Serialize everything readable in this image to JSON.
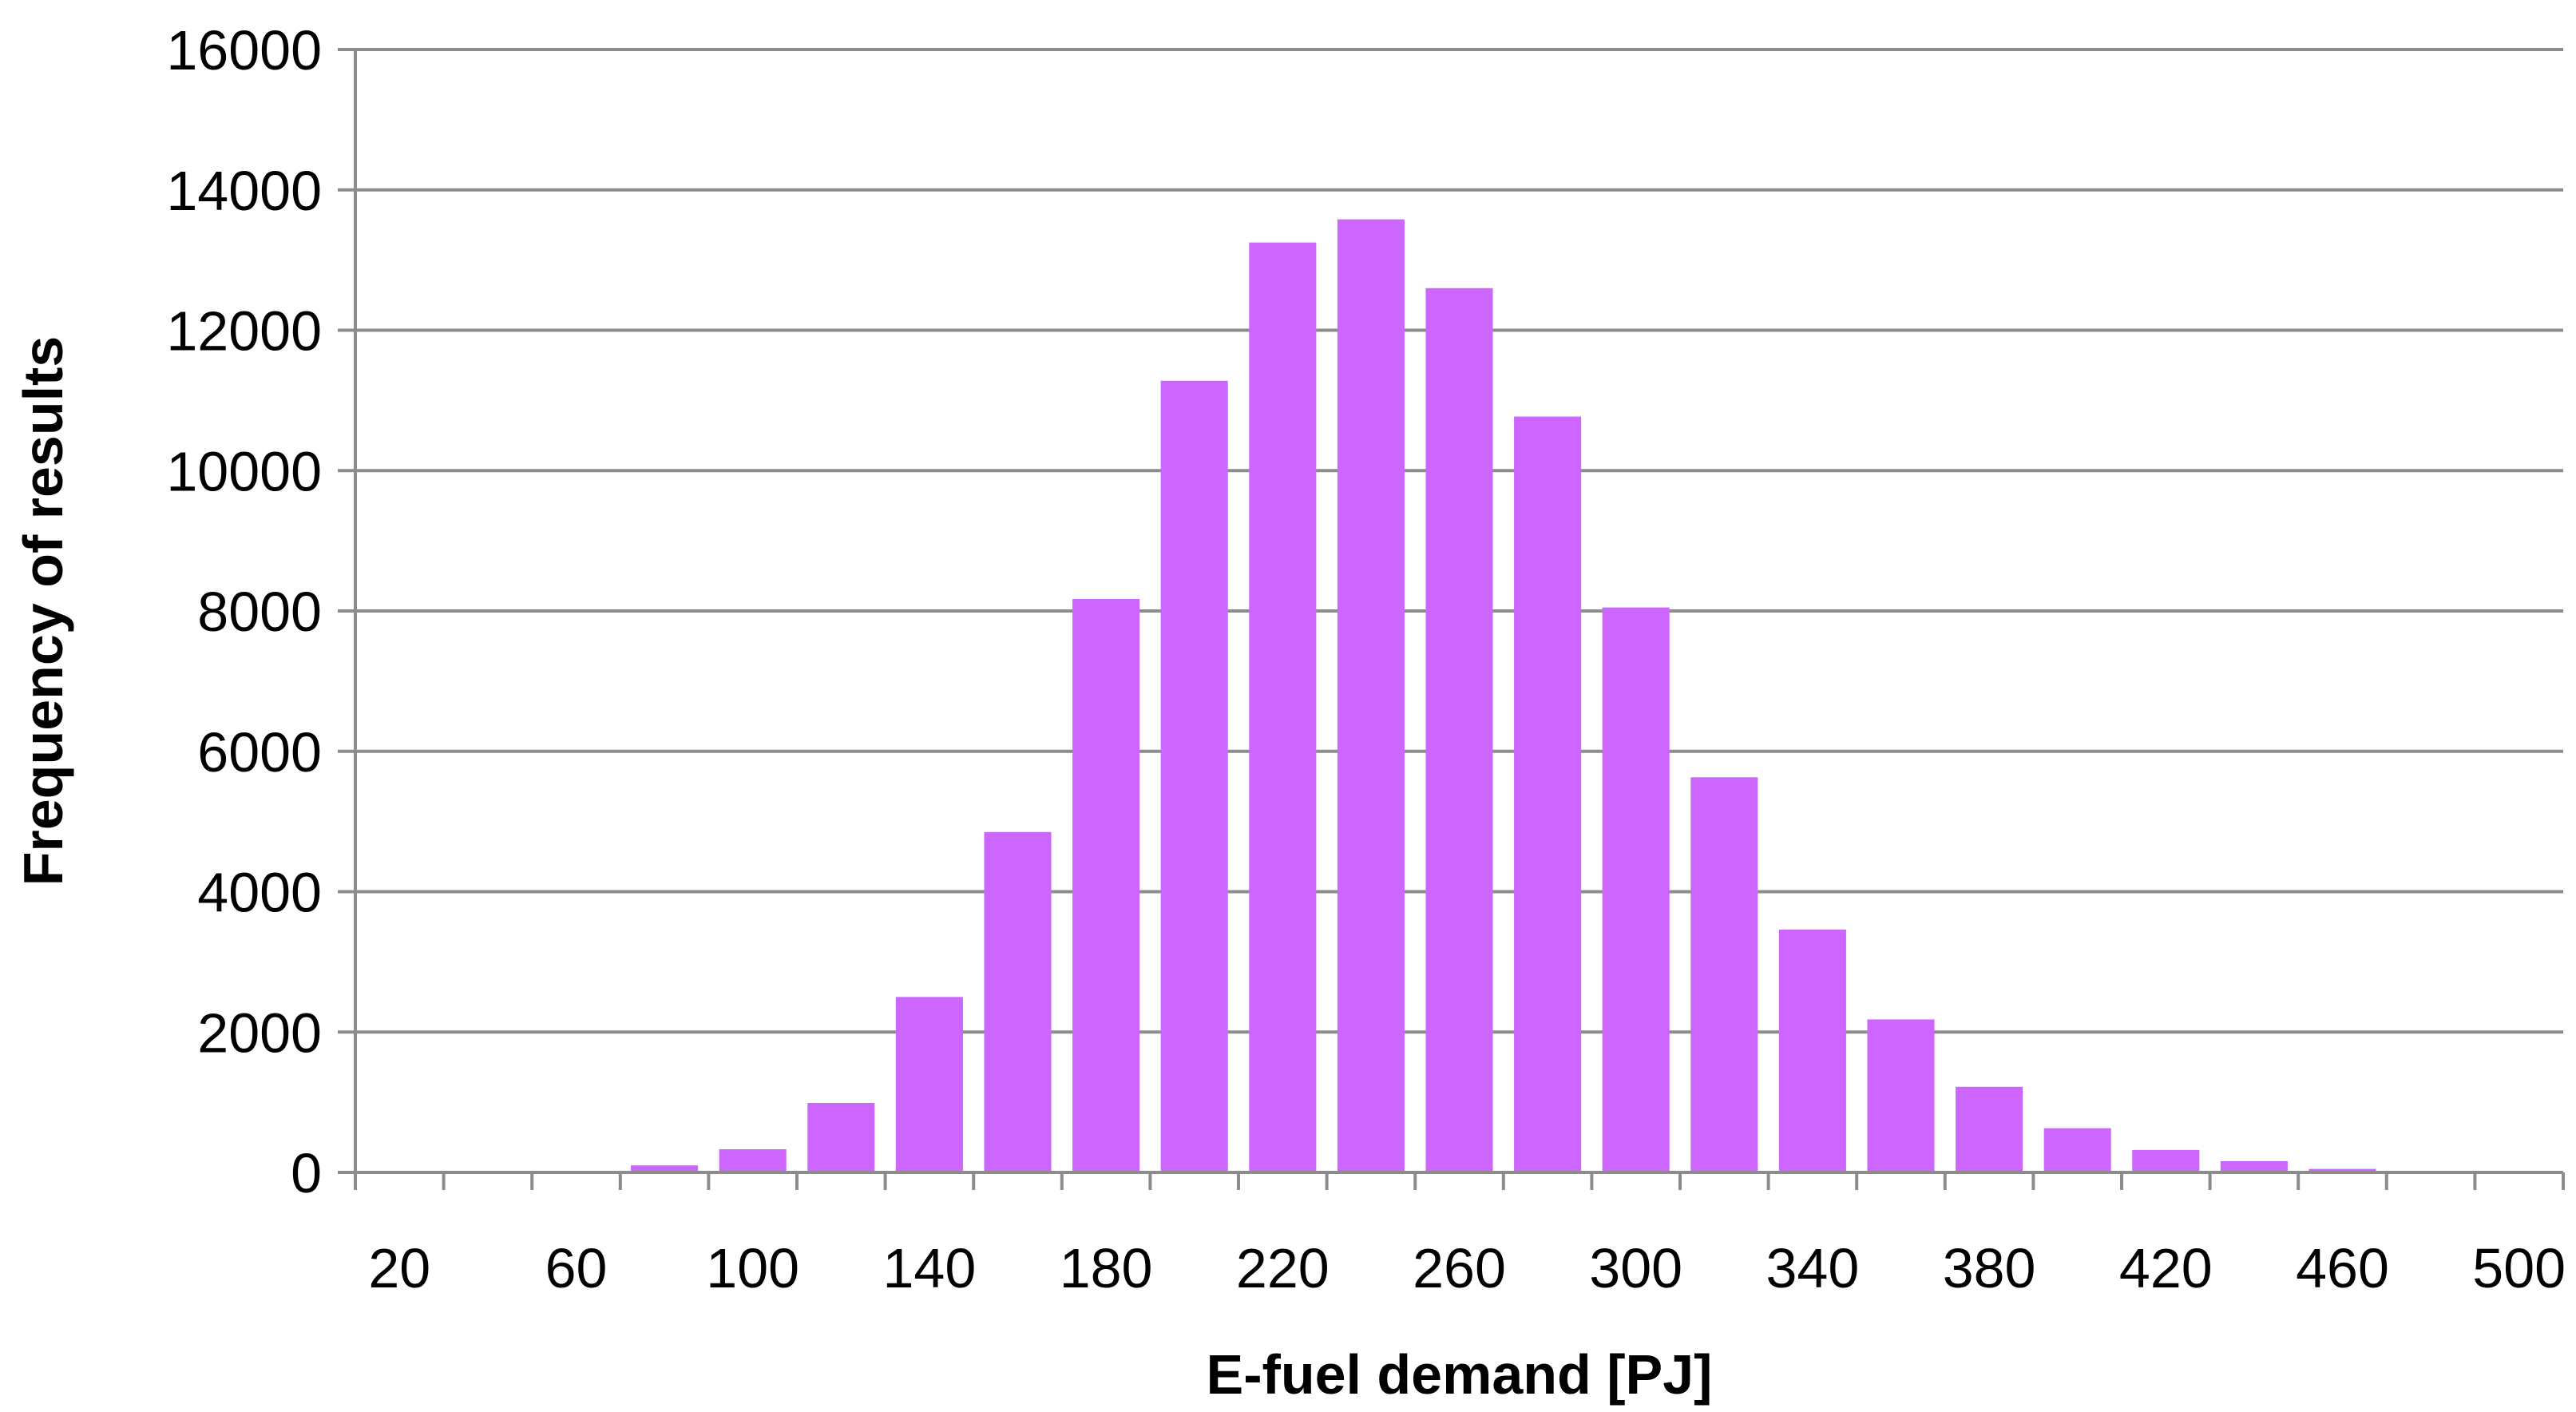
{
  "chart_data": {
    "type": "bar",
    "title": "",
    "xlabel": "E-fuel demand [PJ]",
    "ylabel": "Frequency of results",
    "categories": [
      "20",
      "40",
      "60",
      "80",
      "100",
      "120",
      "140",
      "160",
      "180",
      "200",
      "220",
      "240",
      "260",
      "280",
      "300",
      "320",
      "340",
      "360",
      "380",
      "400",
      "420",
      "440",
      "460",
      "480",
      "500"
    ],
    "x_tick_labels": [
      "20",
      "60",
      "100",
      "140",
      "180",
      "220",
      "260",
      "300",
      "340",
      "380",
      "420",
      "460",
      "500"
    ],
    "values": [
      0,
      0,
      0,
      100,
      330,
      990,
      2500,
      4850,
      8170,
      11280,
      13250,
      13580,
      12600,
      10770,
      8050,
      5630,
      3460,
      2180,
      1220,
      630,
      320,
      160,
      50,
      0,
      0
    ],
    "y_ticks": [
      0,
      2000,
      4000,
      6000,
      8000,
      10000,
      12000,
      14000,
      16000
    ],
    "ylim": [
      0,
      16000
    ],
    "grid": true,
    "legend": "none",
    "bar_color": "#cc66ff",
    "grid_color": "#8c8c8c"
  }
}
